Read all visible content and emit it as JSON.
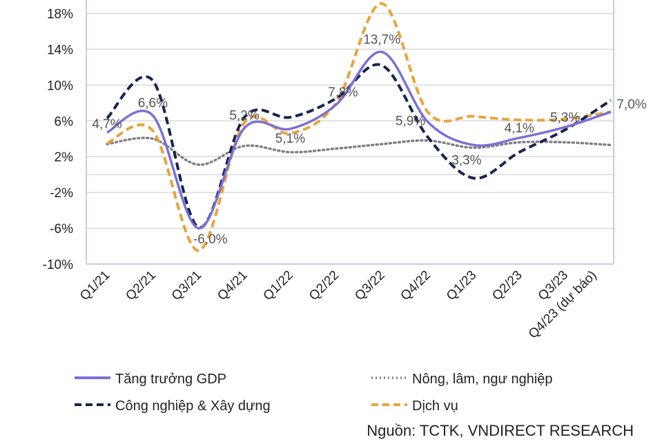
{
  "chart_data": {
    "type": "line",
    "categories": [
      "Q1/21",
      "Q2/21",
      "Q3/21",
      "Q4/21",
      "Q1/22",
      "Q2/22",
      "Q3/22",
      "Q4/22",
      "Q1/23",
      "Q2/23",
      "Q3/23",
      "Q4/23 (dự báo)"
    ],
    "ylim": [
      -10,
      19.5
    ],
    "yticks": [
      -10,
      -6,
      -2,
      2,
      6,
      10,
      14,
      18
    ],
    "ytick_labels": [
      "-10%",
      "-6%",
      "-2%",
      "2%",
      "6%",
      "10%",
      "14%",
      "18%"
    ],
    "grid": true,
    "legend_position": "bottom",
    "series": [
      {
        "name": "Tăng trưởng GDP",
        "color": "#7B6FD6",
        "style": "solid",
        "values": [
          4.7,
          6.6,
          -6.0,
          5.2,
          5.1,
          7.8,
          13.7,
          5.9,
          3.3,
          4.1,
          5.3,
          7.0
        ],
        "labels": [
          "4,7%",
          "6,6%",
          "-6,0%",
          "5,2%",
          "5,1%",
          "7,8%",
          "13,7%",
          "5,9%",
          "3,3%",
          "4,1%",
          "5,3%",
          "7,0%"
        ]
      },
      {
        "name": "Nông, lâm, ngư nghiệp",
        "color": "#7F7F7F",
        "style": "dotted",
        "values": [
          3.4,
          4.0,
          1.1,
          3.2,
          2.5,
          2.9,
          3.4,
          3.8,
          3.0,
          3.6,
          3.6,
          3.3
        ]
      },
      {
        "name": "Công nghiệp & Xây dựng",
        "color": "#14264F",
        "style": "dashed",
        "values": [
          6.3,
          10.5,
          -5.9,
          6.4,
          6.4,
          8.5,
          12.2,
          4.2,
          -0.4,
          2.5,
          5.0,
          8.3
        ]
      },
      {
        "name": "Dịch vụ",
        "color": "#E8A33D",
        "style": "dashed",
        "values": [
          3.5,
          4.9,
          -8.5,
          5.8,
          4.6,
          8.0,
          19.1,
          7.0,
          6.5,
          6.1,
          6.2,
          7.0
        ]
      }
    ],
    "source": "Nguồn: TCTK, VNDIRECT RESEARCH"
  }
}
